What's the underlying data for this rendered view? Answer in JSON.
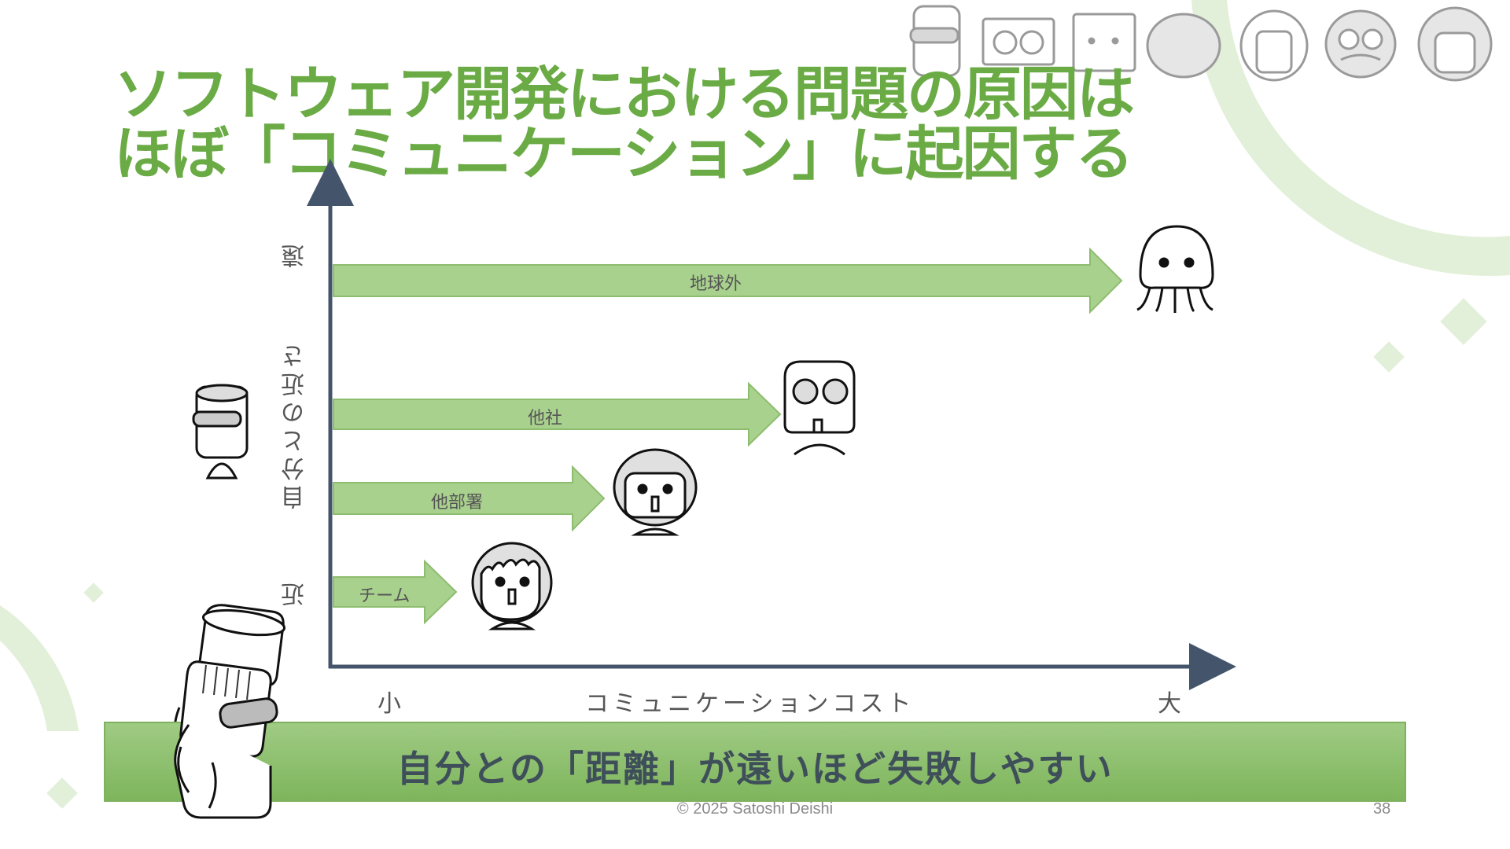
{
  "slide": {
    "title_line1": "ソフトウェア開発における問題の原因は",
    "title_line2": "ほぼ「コミュニケーション」に起因する",
    "banner": "自分との「距離」が遠いほど失敗しやすい",
    "footer": "© 2025 Satoshi Deishi",
    "page_number": "38"
  },
  "diagram": {
    "y_axis_label": "自分との近さ",
    "y_far": "遠",
    "y_near": "近",
    "x_axis_label": "コミュニケーションコスト",
    "x_small": "小",
    "x_large": "大",
    "arrows": [
      {
        "label": "地球外",
        "character": "jellyfish-alien"
      },
      {
        "label": "他社",
        "character": "goggles-robot"
      },
      {
        "label": "他部署",
        "character": "helmet-person"
      },
      {
        "label": "チーム",
        "character": "short-hair-person"
      }
    ]
  },
  "colors": {
    "accent": "#6aab45",
    "arrow_fill": "#a9d18e",
    "axis": "#44546a",
    "banner_text": "#3f4f5a",
    "deco": "#e2efd9"
  }
}
